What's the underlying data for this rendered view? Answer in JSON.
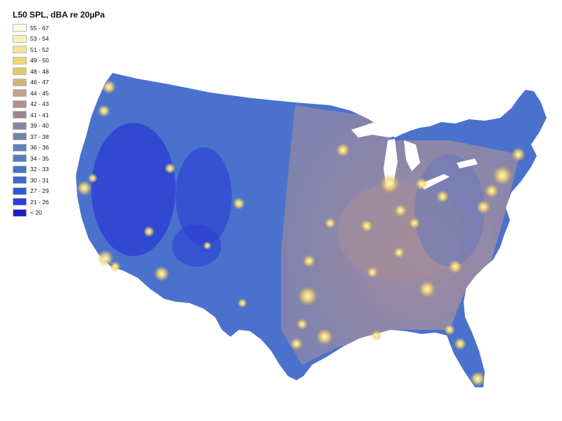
{
  "legend": {
    "title": "L50 SPL, dBA re 20µPa",
    "items": [
      {
        "label": "55 - 67",
        "color": "#fdfde0"
      },
      {
        "label": "53 - 54",
        "color": "#f7f0b8"
      },
      {
        "label": "51 - 52",
        "color": "#f2e494"
      },
      {
        "label": "49 - 50",
        "color": "#eed878"
      },
      {
        "label": "48 - 48",
        "color": "#e2c862"
      },
      {
        "label": "46 - 47",
        "color": "#d4b27a"
      },
      {
        "label": "44 - 45",
        "color": "#c4a08a"
      },
      {
        "label": "42 - 43",
        "color": "#b08e8c"
      },
      {
        "label": "41 - 41",
        "color": "#9c8696"
      },
      {
        "label": "39 - 40",
        "color": "#8a82a2"
      },
      {
        "label": "37 - 38",
        "color": "#7880ac"
      },
      {
        "label": "36 - 36",
        "color": "#6580b8"
      },
      {
        "label": "34 - 35",
        "color": "#567cc2"
      },
      {
        "label": "32 - 33",
        "color": "#4874c6"
      },
      {
        "label": "30 - 31",
        "color": "#3c6acc"
      },
      {
        "label": "27 - 29",
        "color": "#3058d6"
      },
      {
        "label": "21 - 26",
        "color": "#2a42da"
      },
      {
        "label": "< 20",
        "color": "#1a20c8"
      }
    ]
  }
}
